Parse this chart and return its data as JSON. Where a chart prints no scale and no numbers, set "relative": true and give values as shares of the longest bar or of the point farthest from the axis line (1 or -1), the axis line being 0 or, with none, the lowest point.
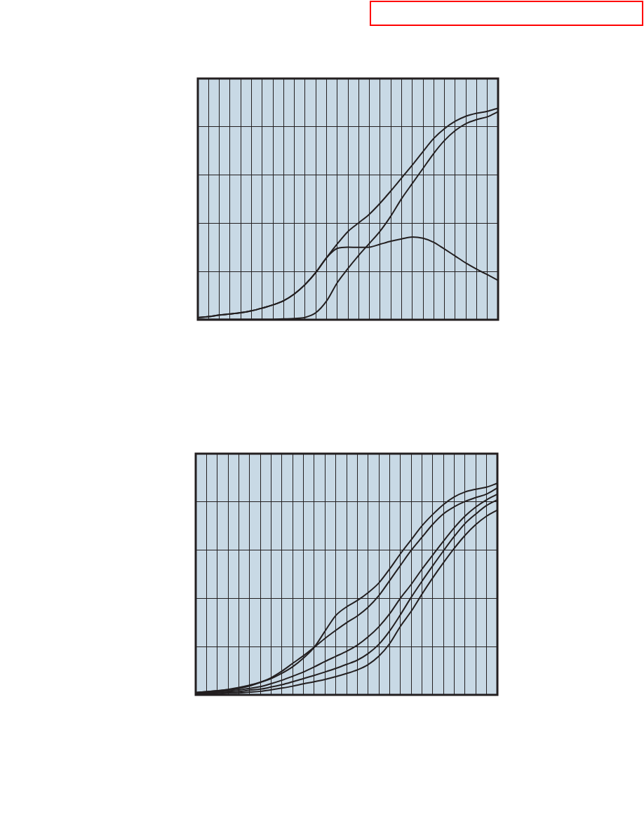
{
  "chart_data": [
    {
      "type": "line",
      "relative": true,
      "grid": true,
      "tick_labels": false,
      "categories": [
        null,
        null,
        null,
        null,
        null,
        null,
        null,
        null,
        null,
        null,
        null,
        null,
        null,
        null,
        null,
        null,
        null,
        null,
        null,
        null,
        null,
        null,
        null,
        null,
        null,
        null,
        null,
        null,
        null
      ],
      "series": [
        {
          "color": "#231f20",
          "values": [
            0.01,
            0.015,
            0.022,
            0.027,
            0.033,
            0.042,
            0.055,
            0.07,
            0.09,
            0.122,
            0.166,
            0.223,
            0.293,
            0.358,
            0.417,
            0.458,
            0.499,
            0.551,
            0.609,
            0.67,
            0.731,
            0.795,
            0.857,
            0.903,
            0.938,
            0.962,
            0.976,
            0.985,
            1.0
          ]
        },
        {
          "color": "#231f20",
          "values": [
            0.002,
            0.002,
            0.002,
            0.002,
            0.002,
            0.002,
            0.002,
            0.002,
            0.004,
            0.006,
            0.011,
            0.033,
            0.088,
            0.175,
            0.242,
            0.304,
            0.361,
            0.419,
            0.49,
            0.572,
            0.644,
            0.715,
            0.786,
            0.847,
            0.894,
            0.927,
            0.946,
            0.959,
            0.983
          ]
        },
        {
          "color": "#231f20",
          "values": [
            0.01,
            0.015,
            0.022,
            0.027,
            0.033,
            0.042,
            0.055,
            0.07,
            0.09,
            0.122,
            0.166,
            0.223,
            0.293,
            0.337,
            0.343,
            0.342,
            0.343,
            0.357,
            0.371,
            0.382,
            0.391,
            0.385,
            0.366,
            0.334,
            0.301,
            0.268,
            0.239,
            0.213,
            0.186
          ]
        }
      ]
    },
    {
      "type": "line",
      "relative": true,
      "grid": true,
      "tick_labels": false,
      "categories": [
        null,
        null,
        null,
        null,
        null,
        null,
        null,
        null,
        null,
        null,
        null,
        null,
        null,
        null,
        null,
        null,
        null,
        null,
        null,
        null,
        null,
        null,
        null,
        null,
        null,
        null,
        null,
        null,
        null
      ],
      "series": [
        {
          "color": "#231f20",
          "values": [
            0.011,
            0.015,
            0.019,
            0.023,
            0.03,
            0.042,
            0.059,
            0.077,
            0.102,
            0.133,
            0.174,
            0.225,
            0.301,
            0.375,
            0.416,
            0.446,
            0.483,
            0.529,
            0.595,
            0.667,
            0.733,
            0.799,
            0.853,
            0.9,
            0.936,
            0.959,
            0.972,
            0.982,
            1.0
          ]
        },
        {
          "color": "#231f20",
          "values": [
            0.011,
            0.015,
            0.02,
            0.026,
            0.035,
            0.046,
            0.06,
            0.081,
            0.112,
            0.149,
            0.185,
            0.225,
            0.267,
            0.305,
            0.341,
            0.373,
            0.414,
            0.469,
            0.54,
            0.612,
            0.683,
            0.745,
            0.806,
            0.856,
            0.889,
            0.914,
            0.933,
            0.949,
            0.978
          ]
        },
        {
          "color": "#231f20",
          "values": [
            0.009,
            0.012,
            0.015,
            0.018,
            0.023,
            0.031,
            0.039,
            0.053,
            0.069,
            0.088,
            0.108,
            0.132,
            0.158,
            0.182,
            0.206,
            0.235,
            0.274,
            0.322,
            0.383,
            0.457,
            0.522,
            0.594,
            0.661,
            0.727,
            0.79,
            0.845,
            0.888,
            0.922,
            0.948
          ]
        },
        {
          "color": "#231f20",
          "values": [
            0.007,
            0.008,
            0.011,
            0.013,
            0.016,
            0.022,
            0.027,
            0.037,
            0.048,
            0.062,
            0.077,
            0.092,
            0.108,
            0.125,
            0.144,
            0.164,
            0.195,
            0.239,
            0.302,
            0.379,
            0.461,
            0.537,
            0.61,
            0.681,
            0.749,
            0.81,
            0.855,
            0.895,
            0.922
          ]
        },
        {
          "color": "#231f20",
          "values": [
            0.004,
            0.005,
            0.006,
            0.008,
            0.009,
            0.013,
            0.017,
            0.024,
            0.032,
            0.041,
            0.052,
            0.062,
            0.073,
            0.086,
            0.101,
            0.118,
            0.143,
            0.183,
            0.242,
            0.324,
            0.395,
            0.476,
            0.553,
            0.625,
            0.693,
            0.754,
            0.805,
            0.845,
            0.874
          ]
        }
      ]
    }
  ]
}
